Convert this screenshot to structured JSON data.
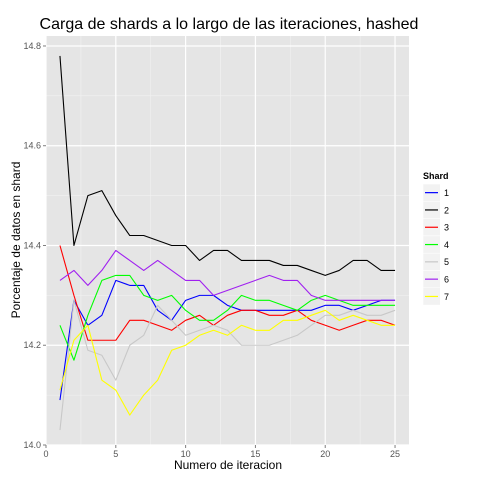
{
  "chart_data": {
    "type": "line",
    "title": "Carga de shards a lo largo de las iteraciones, hashed",
    "xlabel": "Numero de iteracion",
    "ylabel": "Porcentaje de datos en shard",
    "xlim": [
      0,
      26
    ],
    "ylim": [
      14.0,
      14.82
    ],
    "x_ticks": [
      0,
      5,
      10,
      15,
      20,
      25
    ],
    "y_ticks": [
      14.0,
      14.2,
      14.4,
      14.6,
      14.8
    ],
    "y_tick_labels": [
      "14.0",
      "14.2",
      "14.4",
      "14.6",
      "14.8"
    ],
    "grid": true,
    "background": "#e5e5e5",
    "legend": {
      "title": "Shard",
      "placement": "right"
    },
    "x": [
      1,
      2,
      3,
      4,
      5,
      6,
      7,
      8,
      9,
      10,
      11,
      12,
      13,
      14,
      15,
      16,
      17,
      18,
      19,
      20,
      21,
      22,
      23,
      24,
      25
    ],
    "series": [
      {
        "name": "1",
        "color": "#0000ff",
        "values": [
          14.09,
          14.29,
          14.24,
          14.26,
          14.33,
          14.32,
          14.32,
          14.27,
          14.25,
          14.29,
          14.3,
          14.3,
          14.28,
          14.27,
          14.27,
          14.27,
          14.27,
          14.27,
          14.27,
          14.28,
          14.28,
          14.27,
          14.28,
          14.29,
          14.29
        ]
      },
      {
        "name": "2",
        "color": "#000000",
        "values": [
          14.78,
          14.4,
          14.5,
          14.51,
          14.46,
          14.42,
          14.42,
          14.41,
          14.4,
          14.4,
          14.37,
          14.39,
          14.39,
          14.37,
          14.37,
          14.37,
          14.36,
          14.36,
          14.35,
          14.34,
          14.35,
          14.37,
          14.37,
          14.35,
          14.35
        ]
      },
      {
        "name": "3",
        "color": "#ff0000",
        "values": [
          14.4,
          14.3,
          14.21,
          14.21,
          14.21,
          14.25,
          14.25,
          14.24,
          14.23,
          14.25,
          14.26,
          14.24,
          14.26,
          14.27,
          14.27,
          14.26,
          14.26,
          14.27,
          14.25,
          14.24,
          14.23,
          14.24,
          14.25,
          14.25,
          14.24
        ]
      },
      {
        "name": "4",
        "color": "#00ff00",
        "values": [
          14.24,
          14.17,
          14.26,
          14.33,
          14.34,
          14.34,
          14.3,
          14.29,
          14.3,
          14.27,
          14.25,
          14.25,
          14.27,
          14.3,
          14.29,
          14.29,
          14.28,
          14.27,
          14.29,
          14.3,
          14.29,
          14.28,
          14.28,
          14.28,
          14.28
        ]
      },
      {
        "name": "5",
        "color": "#c8c8c8",
        "values": [
          14.03,
          14.29,
          14.19,
          14.18,
          14.13,
          14.2,
          14.22,
          14.28,
          14.25,
          14.22,
          14.23,
          14.24,
          14.23,
          14.2,
          14.2,
          14.2,
          14.21,
          14.22,
          14.24,
          14.26,
          14.26,
          14.27,
          14.26,
          14.26,
          14.27
        ]
      },
      {
        "name": "6",
        "color": "#a020f0",
        "values": [
          14.33,
          14.35,
          14.32,
          14.35,
          14.39,
          14.37,
          14.35,
          14.37,
          14.35,
          14.33,
          14.33,
          14.3,
          14.31,
          14.32,
          14.33,
          14.34,
          14.33,
          14.33,
          14.3,
          14.29,
          14.29,
          14.29,
          14.29,
          14.29,
          14.29
        ]
      },
      {
        "name": "7",
        "color": "#ffff00",
        "values": [
          14.11,
          14.21,
          14.24,
          14.13,
          14.11,
          14.06,
          14.1,
          14.13,
          14.19,
          14.2,
          14.22,
          14.23,
          14.22,
          14.24,
          14.23,
          14.23,
          14.25,
          14.25,
          14.26,
          14.27,
          14.25,
          14.26,
          14.25,
          14.24,
          14.24
        ]
      }
    ]
  }
}
